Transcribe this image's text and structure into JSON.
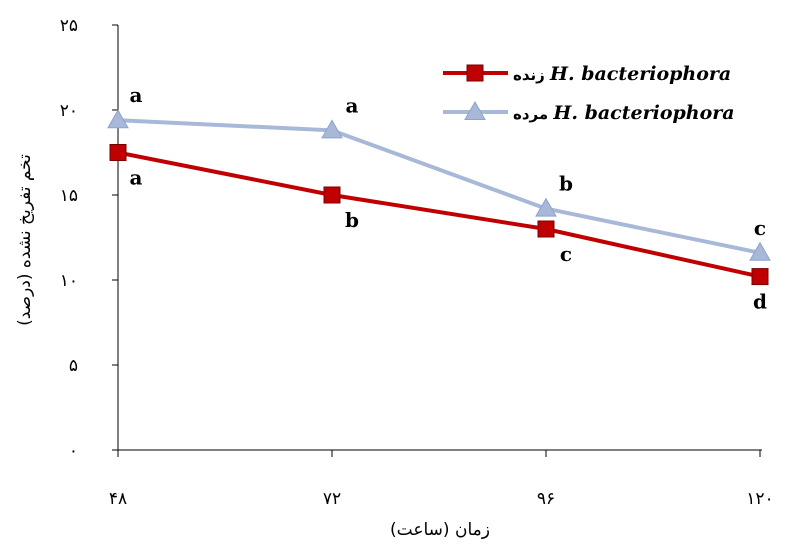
{
  "chart_data": {
    "type": "line",
    "x": [
      "۴۸",
      "۷۲",
      "۹۶",
      "۱۲۰"
    ],
    "xlabel": "زمان (ساعت)",
    "ylabel": "تخم تفریخ نشده (درصد)",
    "ylim": [
      0,
      25
    ],
    "yticks": [
      "۰",
      "۵",
      "۱۰",
      "۱۵",
      "۲۰",
      "۲۵"
    ],
    "grid": false,
    "legend_position": "top-right",
    "series": [
      {
        "name_fa": "زنده",
        "name_latin": "H. bacteriophora",
        "values": [
          17.5,
          15.0,
          13.0,
          10.2
        ],
        "labels": [
          "a",
          "b",
          "c",
          "d"
        ],
        "label_side": "below",
        "color": "#c00000",
        "marker": "square"
      },
      {
        "name_fa": "مرده",
        "name_latin": "H. bacteriophora",
        "values": [
          19.4,
          18.8,
          14.2,
          11.6
        ],
        "labels": [
          "a",
          "a",
          "b",
          "c"
        ],
        "label_side": "above",
        "color": "#a8b8d8",
        "marker": "triangle"
      }
    ]
  }
}
